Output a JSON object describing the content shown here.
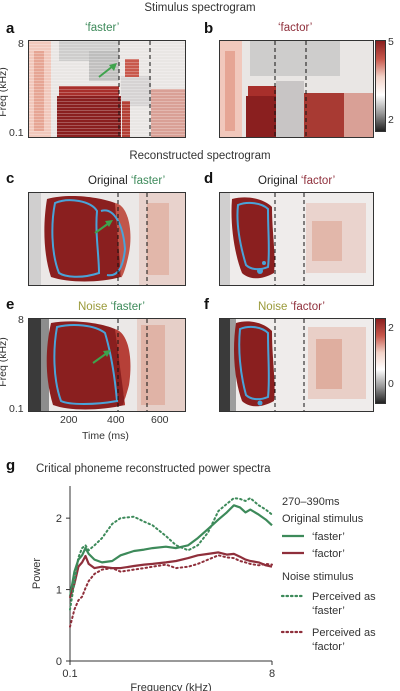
{
  "section_stimulus": "Stimulus spectrogram",
  "section_reconstructed": "Reconstructed spectrogram",
  "panels": {
    "a": {
      "letter": "a",
      "title": "‘faster’"
    },
    "b": {
      "letter": "b",
      "title": "‘factor’"
    },
    "c": {
      "letter": "c",
      "prefix": "Original",
      "title": "‘faster’"
    },
    "d": {
      "letter": "d",
      "prefix": "Original",
      "title": "‘factor’"
    },
    "e": {
      "letter": "e",
      "prefix": "Noise",
      "title": "‘faster’"
    },
    "f": {
      "letter": "f",
      "prefix": "Noise",
      "title": "‘factor’"
    }
  },
  "spectrogram_axes": {
    "freq_label": "Freq (kHz)",
    "freq_ticks": [
      "8",
      "0.1"
    ],
    "time_label": "Time (ms)",
    "time_ticks": [
      "200",
      "400",
      "600"
    ]
  },
  "colorbar_top": {
    "ticks": [
      "5",
      "2"
    ]
  },
  "colorbar_bottom": {
    "ticks": [
      "2",
      "0"
    ]
  },
  "colors": {
    "green": "#3d8a5a",
    "red": "#8f2f3b",
    "noise_yellow": "#9a9a3a",
    "contour_blue": "#4aa3d8"
  },
  "panel_g": {
    "letter": "g",
    "title": "Critical phoneme reconstructed power spectra"
  },
  "chart_data": {
    "type": "line",
    "title": "Critical phoneme reconstructed power spectra",
    "xlabel": "Frequency (kHz)",
    "ylabel": "Power",
    "x_ticks": [
      "0.1",
      "8"
    ],
    "y_ticks": [
      "0",
      "1",
      "2"
    ],
    "xscale": "log",
    "xlim": [
      0.1,
      8
    ],
    "ylim": [
      0,
      2.45
    ],
    "legend": {
      "window": "270–390ms",
      "group_original": "Original stimulus",
      "group_noise": "Noise stimulus",
      "entries": [
        "‘faster’",
        "‘factor’",
        "Perceived as ‘faster’",
        "Perceived as ‘factor’"
      ]
    },
    "x": [
      0.1,
      0.11,
      0.12,
      0.13,
      0.14,
      0.15,
      0.17,
      0.2,
      0.25,
      0.3,
      0.4,
      0.5,
      0.6,
      0.8,
      1.0,
      1.3,
      1.6,
      2.0,
      2.5,
      3.0,
      3.5,
      4.0,
      4.5,
      5.0,
      6.0,
      7.0,
      8.0
    ],
    "series": [
      {
        "name": "‘faster’",
        "style": "solid",
        "color": "#3d8a5a",
        "values": [
          0.9,
          1.25,
          1.42,
          1.48,
          1.58,
          1.5,
          1.42,
          1.38,
          1.4,
          1.48,
          1.54,
          1.56,
          1.58,
          1.6,
          1.58,
          1.62,
          1.72,
          1.85,
          1.98,
          2.08,
          2.18,
          2.15,
          2.08,
          2.12,
          2.05,
          1.98,
          1.9
        ]
      },
      {
        "name": "‘factor’",
        "style": "solid",
        "color": "#8f2f3b",
        "values": [
          0.88,
          1.08,
          1.32,
          1.38,
          1.47,
          1.36,
          1.3,
          1.32,
          1.3,
          1.3,
          1.33,
          1.35,
          1.36,
          1.38,
          1.4,
          1.44,
          1.48,
          1.5,
          1.52,
          1.49,
          1.5,
          1.46,
          1.42,
          1.4,
          1.38,
          1.34,
          1.32
        ]
      },
      {
        "name": "Perceived as ‘faster’",
        "style": "dotted",
        "color": "#3d8a5a",
        "values": [
          0.72,
          1.1,
          1.45,
          1.58,
          1.62,
          1.55,
          1.62,
          1.72,
          1.92,
          2.0,
          2.02,
          1.95,
          1.9,
          1.75,
          1.62,
          1.55,
          1.62,
          1.8,
          2.1,
          2.2,
          2.28,
          2.27,
          2.24,
          2.28,
          2.18,
          2.12,
          2.05
        ]
      },
      {
        "name": "Perceived as ‘factor’",
        "style": "dotted",
        "color": "#8f2f3b",
        "values": [
          0.48,
          0.72,
          0.85,
          0.9,
          1.02,
          1.12,
          1.22,
          1.28,
          1.3,
          1.25,
          1.28,
          1.3,
          1.32,
          1.35,
          1.3,
          1.32,
          1.36,
          1.42,
          1.48,
          1.45,
          1.44,
          1.4,
          1.38,
          1.36,
          1.34,
          1.36,
          1.35
        ]
      }
    ]
  }
}
